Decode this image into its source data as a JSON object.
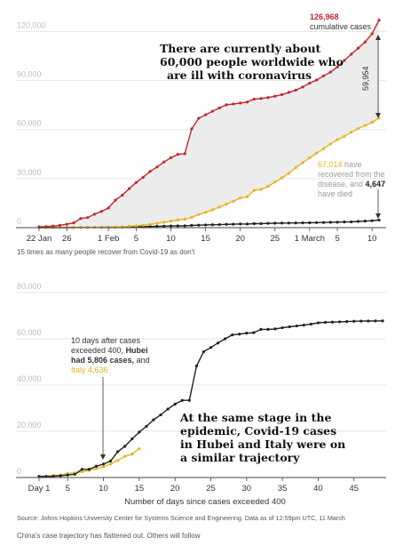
{
  "chart_data": [
    {
      "type": "line",
      "x_ticks": [
        "22 Jan",
        "26",
        "1 Feb",
        "5",
        "10",
        "15",
        "20",
        "25",
        "1 March",
        "5",
        "10"
      ],
      "y_ticks": [
        "0",
        "30,000",
        "60,000",
        "90,000",
        "120,000"
      ],
      "ylim": [
        0,
        130000
      ],
      "x_range": [
        "22 Jan",
        "11 March"
      ],
      "grid": true,
      "area_fill_between": [
        "cases",
        "recovered"
      ],
      "series": [
        {
          "key": "cases",
          "color": "#c0282d",
          "x": [
            "22 Jan",
            "23 Jan",
            "24 Jan",
            "25 Jan",
            "26 Jan",
            "27 Jan",
            "28 Jan",
            "29 Jan",
            "30 Jan",
            "31 Jan",
            "1 Feb",
            "2 Feb",
            "3 Feb",
            "4 Feb",
            "5 Feb",
            "6 Feb",
            "7 Feb",
            "8 Feb",
            "9 Feb",
            "10 Feb",
            "11 Feb",
            "12 Feb",
            "13 Feb",
            "14 Feb",
            "15 Feb",
            "16 Feb",
            "17 Feb",
            "18 Feb",
            "19 Feb",
            "20 Feb",
            "21 Feb",
            "22 Feb",
            "23 Feb",
            "24 Feb",
            "25 Feb",
            "26 Feb",
            "27 Feb",
            "28 Feb",
            "29 Feb",
            "1 March",
            "2 March",
            "3 March",
            "4 March",
            "5 March",
            "6 March",
            "7 March",
            "8 March",
            "9 March",
            "10 March",
            "11 March"
          ],
          "values": [
            555,
            654,
            941,
            1434,
            2118,
            2927,
            5578,
            6166,
            8234,
            9927,
            12038,
            16787,
            19881,
            23892,
            27636,
            30818,
            34392,
            37121,
            40151,
            42763,
            44803,
            45222,
            60370,
            66887,
            69032,
            71226,
            73260,
            75138,
            75641,
            76199,
            76843,
            78599,
            78985,
            79570,
            80415,
            81397,
            82756,
            84124,
            86013,
            88371,
            90309,
            92844,
            95124,
            98334,
            102242,
            106138,
            109821,
            113590,
            118620,
            126968
          ]
        },
        {
          "key": "recovered",
          "color": "#e6b422",
          "x": [
            "22 Jan",
            "23 Jan",
            "24 Jan",
            "25 Jan",
            "26 Jan",
            "27 Jan",
            "28 Jan",
            "29 Jan",
            "30 Jan",
            "31 Jan",
            "1 Feb",
            "2 Feb",
            "3 Feb",
            "4 Feb",
            "5 Feb",
            "6 Feb",
            "7 Feb",
            "8 Feb",
            "9 Feb",
            "10 Feb",
            "11 Feb",
            "12 Feb",
            "13 Feb",
            "14 Feb",
            "15 Feb",
            "16 Feb",
            "17 Feb",
            "18 Feb",
            "19 Feb",
            "20 Feb",
            "21 Feb",
            "22 Feb",
            "23 Feb",
            "24 Feb",
            "25 Feb",
            "26 Feb",
            "27 Feb",
            "28 Feb",
            "29 Feb",
            "1 March",
            "2 March",
            "3 March",
            "4 March",
            "5 March",
            "6 March",
            "7 March",
            "8 March",
            "9 March",
            "10 March",
            "11 March"
          ],
          "values": [
            28,
            30,
            36,
            39,
            52,
            61,
            107,
            126,
            143,
            222,
            284,
            472,
            623,
            852,
            1124,
            1487,
            2011,
            2616,
            3244,
            3946,
            4683,
            5150,
            6295,
            8058,
            9395,
            10865,
            12583,
            14352,
            16121,
            18177,
            18890,
            22886,
            23394,
            25227,
            27905,
            30384,
            33277,
            36711,
            39782,
            42716,
            45602,
            48228,
            51170,
            53796,
            55865,
            58358,
            60694,
            62494,
            64404,
            67014
          ]
        },
        {
          "key": "deaths",
          "color": "#222222",
          "x": [
            "22 Jan",
            "23 Jan",
            "24 Jan",
            "25 Jan",
            "26 Jan",
            "27 Jan",
            "28 Jan",
            "29 Jan",
            "30 Jan",
            "31 Jan",
            "1 Feb",
            "2 Feb",
            "3 Feb",
            "4 Feb",
            "5 Feb",
            "6 Feb",
            "7 Feb",
            "8 Feb",
            "9 Feb",
            "10 Feb",
            "11 Feb",
            "12 Feb",
            "13 Feb",
            "14 Feb",
            "15 Feb",
            "16 Feb",
            "17 Feb",
            "18 Feb",
            "19 Feb",
            "20 Feb",
            "21 Feb",
            "22 Feb",
            "23 Feb",
            "24 Feb",
            "25 Feb",
            "26 Feb",
            "27 Feb",
            "28 Feb",
            "29 Feb",
            "1 March",
            "2 March",
            "3 March",
            "4 March",
            "5 March",
            "6 March",
            "7 March",
            "8 March",
            "9 March",
            "10 March",
            "11 March"
          ],
          "values": [
            17,
            18,
            26,
            42,
            56,
            82,
            131,
            133,
            171,
            213,
            259,
            362,
            426,
            492,
            564,
            634,
            719,
            806,
            906,
            1013,
            1113,
            1118,
            1371,
            1523,
            1666,
            1770,
            1868,
            2007,
            2122,
            2247,
            2251,
            2458,
            2469,
            2629,
            2708,
            2770,
            2814,
            2872,
            2941,
            2996,
            3085,
            3160,
            3254,
            3348,
            3460,
            3558,
            3803,
            3996,
            4262,
            4647
          ]
        }
      ],
      "annotations": {
        "headline": [
          "There are currently about",
          "60,000 people worldwide who",
          "are ill with coronavirus"
        ],
        "cases_value": "126,968",
        "cases_text": "cumulative cases",
        "gap_value": "59,954",
        "recovered_value": "67,014",
        "recovered_text_1": " have",
        "recovered_text_2": "recovered from the",
        "recovered_text_3": "disease, and ",
        "deaths_value": "4,647",
        "deaths_text": "have died"
      },
      "caption": "15 times as many people recover from Covid-19 as don't"
    },
    {
      "type": "line",
      "xlabel": "Number of days since cases exceeded 400",
      "x_ticks": [
        "Day 1",
        "5",
        "10",
        "15",
        "20",
        "25",
        "30",
        "35",
        "40",
        "45"
      ],
      "y_ticks": [
        "0",
        "20,000",
        "40,000",
        "60,000",
        "80,000"
      ],
      "ylim": [
        0,
        85000
      ],
      "xlim": [
        1,
        49
      ],
      "grid": true,
      "series": [
        {
          "key": "hubei",
          "color": "#222222",
          "x": [
            1,
            2,
            3,
            4,
            5,
            6,
            7,
            8,
            9,
            10,
            11,
            12,
            13,
            14,
            15,
            16,
            17,
            18,
            19,
            20,
            21,
            22,
            23,
            24,
            25,
            26,
            27,
            28,
            29,
            30,
            31,
            32,
            33,
            34,
            35,
            36,
            37,
            38,
            39,
            40,
            41,
            42,
            43,
            44,
            45,
            46,
            47,
            48,
            49
          ],
          "values": [
            444,
            444,
            549,
            761,
            1058,
            1423,
            3554,
            3554,
            4903,
            5806,
            7153,
            11177,
            13522,
            16678,
            19665,
            22112,
            24953,
            27100,
            29631,
            31728,
            33366,
            33366,
            48206,
            54406,
            56249,
            58182,
            59989,
            61682,
            62031,
            62442,
            62662,
            64084,
            64084,
            64287,
            64786,
            65187,
            65596,
            65914,
            66337,
            66907,
            67103,
            67217,
            67332,
            67466,
            67592,
            67666,
            67707,
            67743,
            67760
          ]
        },
        {
          "key": "italy",
          "color": "#e6b422",
          "x": [
            1,
            2,
            3,
            4,
            5,
            6,
            7,
            8,
            9,
            10,
            11,
            12,
            13,
            14,
            15
          ],
          "values": [
            453,
            655,
            888,
            1128,
            1694,
            2036,
            2502,
            3089,
            3858,
            4636,
            5883,
            7375,
            9172,
            10149,
            12462
          ]
        }
      ],
      "annotations": {
        "note_1": "10 days after cases",
        "note_2": "exceeded 400, ",
        "note_2b": "Hubei",
        "note_3a": "had 5,806 cases,",
        "note_3b": " and",
        "note_4a": "Italy 4,636",
        "headline": [
          "At the same stage in the",
          "epidemic, Covid-19 cases",
          "in Hubei and Italy were on",
          "a similar trajectory"
        ]
      },
      "source": "Source: Johns Hopkins University Center for Systems Science and Engineering. Data as of 12:59pm UTC, 11 March",
      "caption": "China's case trajectory has flattened out. Others will follow"
    }
  ]
}
